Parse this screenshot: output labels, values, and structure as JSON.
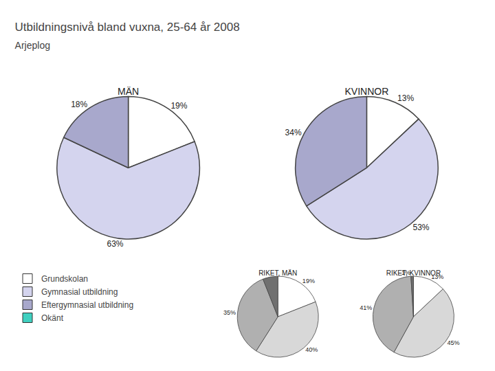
{
  "chart_data": {
    "type": "pie",
    "title": "Utbildningsnivå bland vuxna, 25-64 år 2008",
    "subtitle": "Arjeplog",
    "categories": [
      "Grundskolan",
      "Gymnasial utbildning",
      "Eftergymnasial utbildning",
      "Okänt"
    ],
    "colors": [
      "#ffffff",
      "#d4d4ee",
      "#a8a8cc",
      "#40d0c0"
    ],
    "data_labels": true,
    "legend": "lower left",
    "series": [
      {
        "title": "MÄN",
        "values": [
          19,
          63,
          18,
          null
        ],
        "value_labels": [
          "19%",
          "63%",
          "18%",
          null
        ]
      },
      {
        "title": "KVINNOR",
        "values": [
          13,
          53,
          34,
          null
        ],
        "value_labels": [
          "13%",
          "53%",
          "34%",
          null
        ]
      },
      {
        "title": "RIKET, MÄN",
        "values": [
          19,
          40,
          35,
          6
        ],
        "value_labels": [
          "19%",
          "40%",
          "35%",
          null
        ],
        "colors": [
          "#ffffff",
          "#d8d8d8",
          "#b0b0b0",
          "#707070"
        ]
      },
      {
        "title": "RIKET, KVINNOR",
        "values": [
          13,
          45,
          41,
          1
        ],
        "value_labels": [
          "13%",
          "45%",
          "41%",
          "1%"
        ],
        "colors": [
          "#ffffff",
          "#d8d8d8",
          "#b0b0b0",
          "#707070"
        ]
      }
    ]
  }
}
